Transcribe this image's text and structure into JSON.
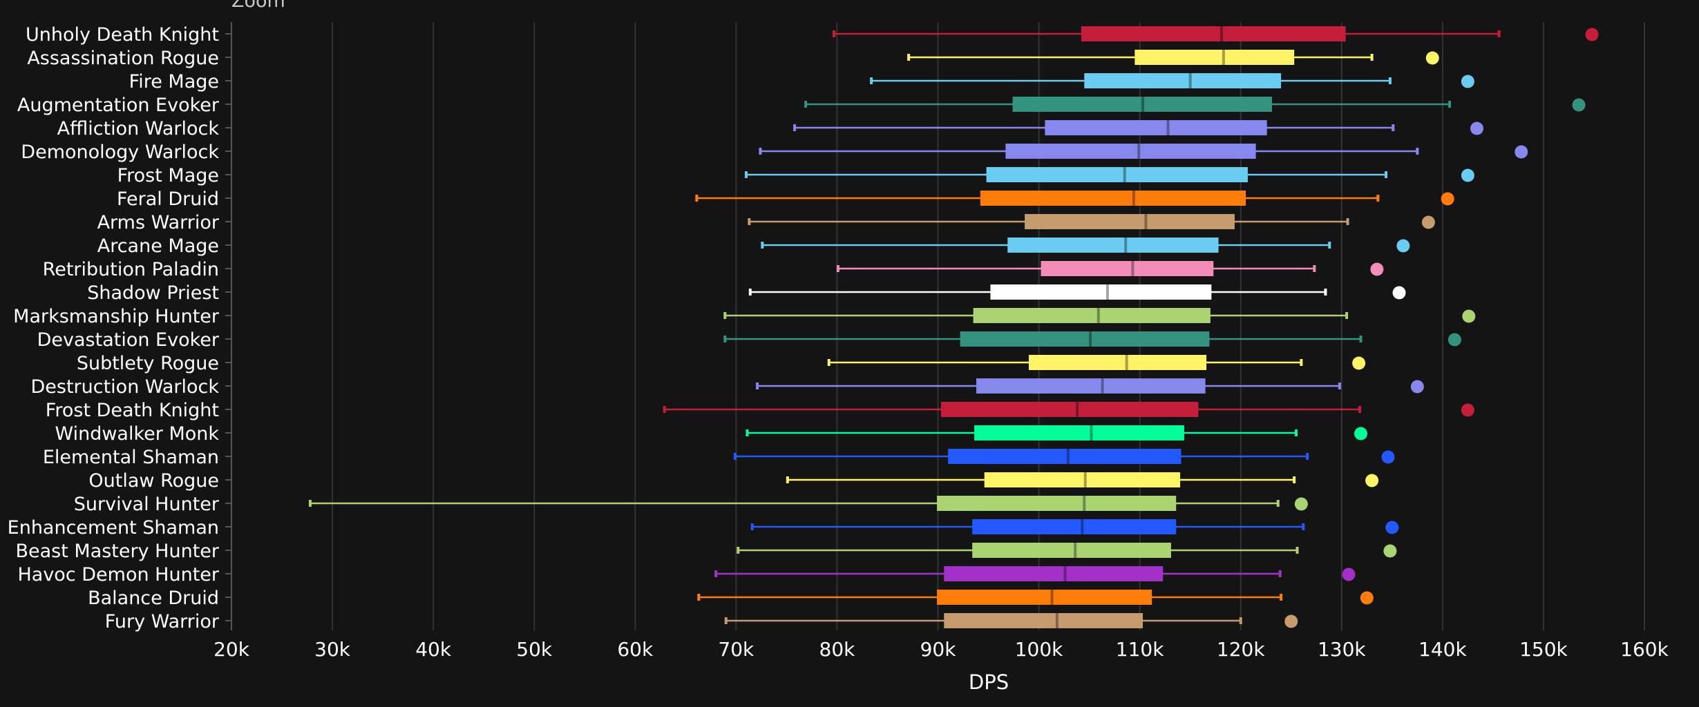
{
  "zoom_label": "Zoom",
  "chart_data": {
    "type": "boxplot",
    "xlabel": "DPS",
    "xlim": [
      20000,
      160000
    ],
    "x_ticks": [
      20000,
      30000,
      40000,
      50000,
      60000,
      70000,
      80000,
      90000,
      100000,
      110000,
      120000,
      130000,
      140000,
      150000,
      160000
    ],
    "x_tick_labels": [
      "20k",
      "30k",
      "40k",
      "50k",
      "60k",
      "70k",
      "80k",
      "90k",
      "100k",
      "110k",
      "120k",
      "130k",
      "140k",
      "150k",
      "160k"
    ],
    "grid": true,
    "series": [
      {
        "name": "Unholy Death Knight",
        "color": "#C41E3A",
        "min": 79700,
        "q1": 104200,
        "median": 118100,
        "q3": 130400,
        "max": 145600,
        "outlier": 154800
      },
      {
        "name": "Assassination Rogue",
        "color": "#FFF468",
        "min": 87100,
        "q1": 109500,
        "median": 118300,
        "q3": 125300,
        "max": 133000,
        "outlier": 139000
      },
      {
        "name": "Fire Mage",
        "color": "#69CCF0",
        "min": 83400,
        "q1": 104500,
        "median": 115000,
        "q3": 124000,
        "max": 134800,
        "outlier": 142500
      },
      {
        "name": "Augmentation Evoker",
        "color": "#33937F",
        "min": 76900,
        "q1": 97400,
        "median": 110300,
        "q3": 123100,
        "max": 140700,
        "outlier": 153500
      },
      {
        "name": "Affliction Warlock",
        "color": "#8788EE",
        "min": 75800,
        "q1": 100600,
        "median": 112800,
        "q3": 122600,
        "max": 135100,
        "outlier": 143400
      },
      {
        "name": "Demonology Warlock",
        "color": "#8788EE",
        "min": 72400,
        "q1": 96700,
        "median": 109900,
        "q3": 121500,
        "max": 137500,
        "outlier": 147800
      },
      {
        "name": "Frost Mage",
        "color": "#69CCF0",
        "min": 71000,
        "q1": 94800,
        "median": 108500,
        "q3": 120700,
        "max": 134400,
        "outlier": 142500
      },
      {
        "name": "Feral Druid",
        "color": "#FF7C0A",
        "min": 66100,
        "q1": 94200,
        "median": 109400,
        "q3": 120500,
        "max": 133600,
        "outlier": 140500
      },
      {
        "name": "Arms Warrior",
        "color": "#C69B6D",
        "min": 71300,
        "q1": 98600,
        "median": 110600,
        "q3": 119400,
        "max": 130600,
        "outlier": 138600
      },
      {
        "name": "Arcane Mage",
        "color": "#69CCF0",
        "min": 72600,
        "q1": 96900,
        "median": 108600,
        "q3": 117800,
        "max": 128800,
        "outlier": 136100
      },
      {
        "name": "Retribution Paladin",
        "color": "#F48CBA",
        "min": 80100,
        "q1": 100200,
        "median": 109300,
        "q3": 117300,
        "max": 127300,
        "outlier": 133500
      },
      {
        "name": "Shadow Priest",
        "color": "#FFFFFF",
        "min": 71400,
        "q1": 95200,
        "median": 106800,
        "q3": 117100,
        "max": 128400,
        "outlier": 135700
      },
      {
        "name": "Marksmanship Hunter",
        "color": "#AAD372",
        "min": 68900,
        "q1": 93500,
        "median": 105900,
        "q3": 117000,
        "max": 130500,
        "outlier": 142600
      },
      {
        "name": "Devastation Evoker",
        "color": "#33937F",
        "min": 68900,
        "q1": 92200,
        "median": 105100,
        "q3": 116900,
        "max": 131900,
        "outlier": 141200
      },
      {
        "name": "Subtlety Rogue",
        "color": "#FFF468",
        "min": 79200,
        "q1": 99000,
        "median": 108700,
        "q3": 116600,
        "max": 126000,
        "outlier": 131700
      },
      {
        "name": "Destruction Warlock",
        "color": "#8788EE",
        "min": 72100,
        "q1": 93800,
        "median": 106300,
        "q3": 116500,
        "max": 129800,
        "outlier": 137500
      },
      {
        "name": "Frost Death Knight",
        "color": "#C41E3A",
        "min": 62900,
        "q1": 90300,
        "median": 103800,
        "q3": 115800,
        "max": 131800,
        "outlier": 142500
      },
      {
        "name": "Windwalker Monk",
        "color": "#00FF98",
        "min": 71100,
        "q1": 93600,
        "median": 105200,
        "q3": 114400,
        "max": 125500,
        "outlier": 131900
      },
      {
        "name": "Elemental Shaman",
        "color": "#2459FF",
        "min": 69900,
        "q1": 91000,
        "median": 102900,
        "q3": 114100,
        "max": 126600,
        "outlier": 134600
      },
      {
        "name": "Outlaw Rogue",
        "color": "#FFF468",
        "min": 75100,
        "q1": 94600,
        "median": 104600,
        "q3": 114000,
        "max": 125300,
        "outlier": 133000
      },
      {
        "name": "Survival Hunter",
        "color": "#AAD372",
        "min": 27800,
        "q1": 89900,
        "median": 104500,
        "q3": 113600,
        "max": 123700,
        "outlier": 126000
      },
      {
        "name": "Enhancement Shaman",
        "color": "#2459FF",
        "min": 71600,
        "q1": 93400,
        "median": 104300,
        "q3": 113600,
        "max": 126200,
        "outlier": 135000
      },
      {
        "name": "Beast Mastery Hunter",
        "color": "#AAD372",
        "min": 70200,
        "q1": 93400,
        "median": 103600,
        "q3": 113100,
        "max": 125600,
        "outlier": 134800
      },
      {
        "name": "Havoc Demon Hunter",
        "color": "#A330C9",
        "min": 68000,
        "q1": 90600,
        "median": 102600,
        "q3": 112300,
        "max": 123900,
        "outlier": 130700
      },
      {
        "name": "Balance Druid",
        "color": "#FF7C0A",
        "min": 66300,
        "q1": 89900,
        "median": 101300,
        "q3": 111200,
        "max": 124000,
        "outlier": 132500
      },
      {
        "name": "Fury Warrior",
        "color": "#C69B6D",
        "min": 69000,
        "q1": 90600,
        "median": 101800,
        "q3": 110300,
        "max": 120000,
        "outlier": 125000
      }
    ]
  }
}
